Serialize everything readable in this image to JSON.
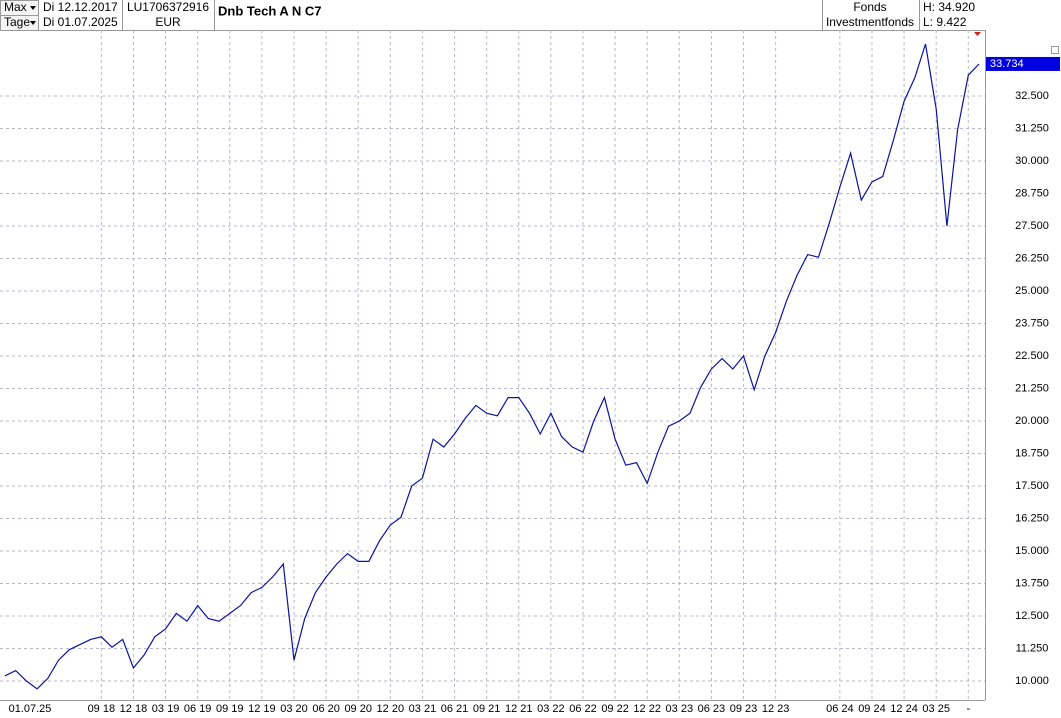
{
  "header": {
    "range": "Max",
    "from": "Di 12.12.2017",
    "isin": "LU1706372916",
    "title": "Dnb Tech A N C7",
    "kind": "Fonds",
    "high": "H: 34.920",
    "unit": "Tage",
    "to": "Di 01.07.2025",
    "currency": "EUR",
    "category": "Investmentfonds",
    "low": "L: 9.422"
  },
  "chart_data": {
    "type": "line",
    "date_label": "01.07.25",
    "categories": [
      null,
      null,
      null,
      null,
      null,
      null,
      null,
      null,
      null,
      "09 18",
      null,
      null,
      "12 18",
      null,
      null,
      "03 19",
      null,
      null,
      "06 19",
      null,
      null,
      "09 19",
      null,
      null,
      "12 19",
      null,
      null,
      "03 20",
      null,
      null,
      "06 20",
      null,
      null,
      "09 20",
      null,
      null,
      "12 20",
      null,
      null,
      "03 21",
      null,
      null,
      "06 21",
      null,
      null,
      "09 21",
      null,
      null,
      "12 21",
      null,
      null,
      "03 22",
      null,
      null,
      "06 22",
      null,
      null,
      "09 22",
      null,
      null,
      "12 22",
      null,
      null,
      "03 23",
      null,
      null,
      "06 23",
      null,
      null,
      "09 23",
      null,
      null,
      "12 23",
      null,
      null,
      null,
      null,
      null,
      "06 24",
      null,
      null,
      "09 24",
      null,
      null,
      "12 24",
      null,
      null,
      "03 25",
      null,
      null,
      "-",
      null
    ],
    "series": [
      {
        "color": "#0a14a0",
        "values": [
          10.2,
          10.4,
          10.0,
          9.7,
          10.1,
          10.8,
          11.2,
          11.4,
          11.6,
          11.7,
          11.3,
          11.6,
          10.5,
          11.0,
          11.7,
          12.0,
          12.6,
          12.3,
          12.9,
          12.4,
          12.3,
          12.6,
          12.9,
          13.4,
          13.6,
          14.0,
          14.5,
          10.8,
          12.4,
          13.4,
          14.0,
          14.5,
          14.9,
          14.6,
          14.6,
          15.4,
          16.0,
          16.3,
          17.5,
          17.8,
          19.3,
          19.0,
          19.5,
          20.1,
          20.6,
          20.3,
          20.2,
          20.9,
          20.9,
          20.3,
          19.5,
          20.3,
          19.4,
          19.0,
          18.8,
          20.0,
          20.9,
          19.3,
          18.3,
          18.4,
          17.6,
          18.8,
          19.8,
          20.0,
          20.3,
          21.3,
          22.0,
          22.4,
          22.0,
          22.5,
          21.2,
          22.5,
          23.4,
          24.6,
          25.6,
          26.4,
          26.3,
          27.6,
          29.0,
          30.3,
          28.5,
          29.2,
          29.4,
          30.8,
          32.3,
          33.2,
          34.5,
          32.0,
          27.5,
          31.2,
          33.3,
          33.734
        ],
        "last_label": "33.734"
      }
    ],
    "ylim": [
      9.27,
      35.04
    ],
    "yticks": [
      {
        "value": 10,
        "label": "10.000"
      },
      {
        "value": 11.25,
        "label": "11.250"
      },
      {
        "value": 12.5,
        "label": "12.500"
      },
      {
        "value": 13.75,
        "label": "13.750"
      },
      {
        "value": 15,
        "label": "15.000"
      },
      {
        "value": 16.25,
        "label": "16.250"
      },
      {
        "value": 17.5,
        "label": "17.500"
      },
      {
        "value": 18.75,
        "label": "18.750"
      },
      {
        "value": 20,
        "label": "20.000"
      },
      {
        "value": 21.25,
        "label": "21.250"
      },
      {
        "value": 22.5,
        "label": "22.500"
      },
      {
        "value": 23.75,
        "label": "23.750"
      },
      {
        "value": 25,
        "label": "25.000"
      },
      {
        "value": 26.25,
        "label": "26.250"
      },
      {
        "value": 27.5,
        "label": "27.500"
      },
      {
        "value": 28.75,
        "label": "28.750"
      },
      {
        "value": 30,
        "label": "30.000"
      },
      {
        "value": 31.25,
        "label": "31.250"
      },
      {
        "value": 32.5,
        "label": "32.500"
      }
    ],
    "grid": true
  }
}
